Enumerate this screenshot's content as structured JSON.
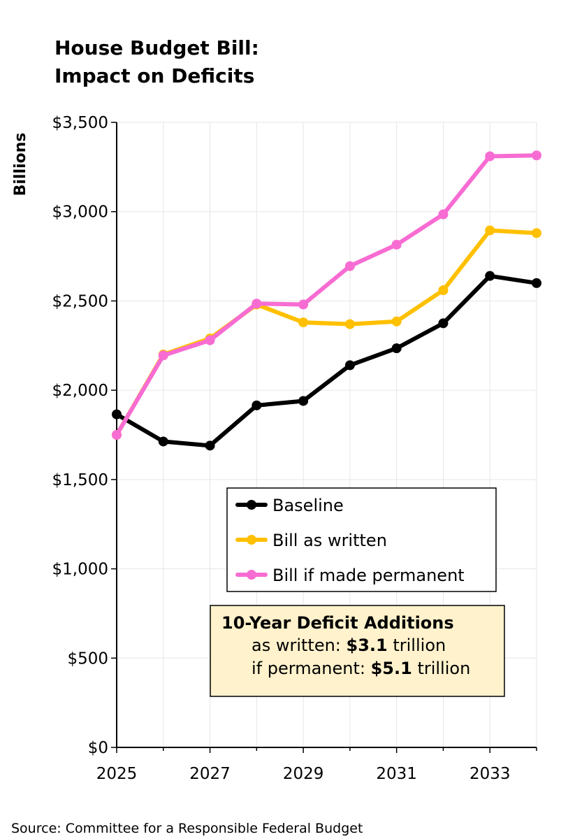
{
  "title_lines": [
    "House Budget Bill:",
    "Impact on Deficits"
  ],
  "source": "Source: Committee for a Responsible Federal Budget",
  "colors": {
    "Baseline": "#000000",
    "Bill as written": "#ffc000",
    "Bill if made permanent": "#f76cd2",
    "note_fill": "#fff2cc",
    "grid": "#e6e6e6"
  },
  "note": {
    "heading": "10-Year Deficit Additions",
    "lines": [
      {
        "prefix": "as written: ",
        "value": "$3.1",
        "suffix": " trillion"
      },
      {
        "prefix": "if permanent: ",
        "value": "$5.1",
        "suffix": " trillion"
      }
    ]
  },
  "chart_data": {
    "type": "line",
    "title": "House Budget Bill: Impact on Deficits",
    "xlabel": "",
    "ylabel": "Billions",
    "x": [
      2025,
      2026,
      2027,
      2028,
      2029,
      2030,
      2031,
      2032,
      2033,
      2034
    ],
    "xticks": [
      2025,
      2027,
      2029,
      2031,
      2033
    ],
    "ylim": [
      0,
      3500
    ],
    "yticks": [
      0,
      500,
      1000,
      1500,
      2000,
      2500,
      3000,
      3500
    ],
    "ytick_labels": [
      "$0",
      "$500",
      "$1,000",
      "$1,500",
      "$2,000",
      "$2,500",
      "$3,000",
      "$3,500"
    ],
    "grid": true,
    "legend": "center-right",
    "series": [
      {
        "name": "Baseline",
        "values": [
          1865,
          1713,
          1690,
          1915,
          1940,
          2140,
          2235,
          2375,
          2640,
          2600
        ]
      },
      {
        "name": "Bill as written",
        "values": [
          1750,
          2200,
          2290,
          2480,
          2380,
          2370,
          2385,
          2560,
          2895,
          2880
        ]
      },
      {
        "name": "Bill if made permanent",
        "values": [
          1750,
          2195,
          2280,
          2485,
          2480,
          2695,
          2815,
          2985,
          3310,
          3315
        ]
      }
    ]
  }
}
